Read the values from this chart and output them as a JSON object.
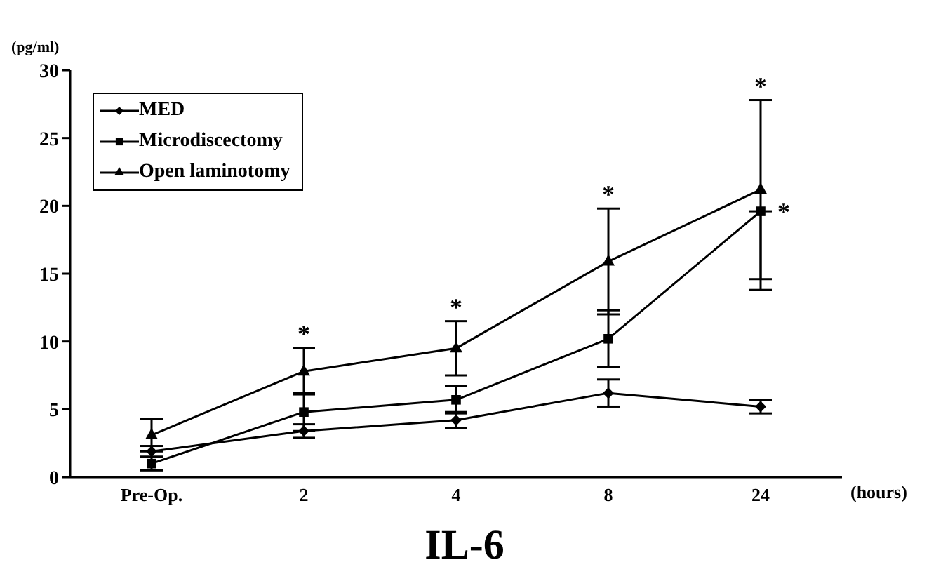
{
  "chart_data": {
    "type": "line",
    "title": "IL-6",
    "ylabel": "(pg/ml)",
    "xlabel": "(hours)",
    "categories": [
      "Pre-Op.",
      "2",
      "4",
      "8",
      "24"
    ],
    "series": [
      {
        "name": "MED",
        "color": "#000000",
        "marker": "diamond",
        "values": [
          1.9,
          3.4,
          4.2,
          6.2,
          5.2
        ],
        "errors": [
          0.4,
          0.5,
          0.6,
          1.0,
          0.5
        ]
      },
      {
        "name": "Microdiscectomy",
        "color": "#000000",
        "marker": "square",
        "values": [
          1.0,
          4.8,
          5.7,
          10.2,
          19.6
        ],
        "errors": [
          0.5,
          1.4,
          1.0,
          2.1,
          [
            13.8,
            19.6
          ]
        ]
      },
      {
        "name": "Open laminotomy",
        "color": "#000000",
        "marker": "triangle",
        "values": [
          3.1,
          7.8,
          9.5,
          15.9,
          21.2
        ],
        "errors": [
          1.2,
          1.7,
          2.0,
          3.9,
          6.6
        ]
      }
    ],
    "annotations": [
      {
        "text": "*",
        "x": "2",
        "y": 9.5
      },
      {
        "text": "*",
        "x": "4",
        "y": 11.5
      },
      {
        "text": "*",
        "x": "8",
        "y": 19.8
      },
      {
        "text": "*",
        "x": "24",
        "y": 27.8
      },
      {
        "text": "*",
        "x": "24",
        "y": 19.6
      }
    ],
    "ylim": [
      0,
      30
    ],
    "yticks": [
      0,
      5,
      10,
      15,
      20,
      25,
      30
    ],
    "grid": false,
    "legend": "top left",
    "line_style": "solid"
  }
}
